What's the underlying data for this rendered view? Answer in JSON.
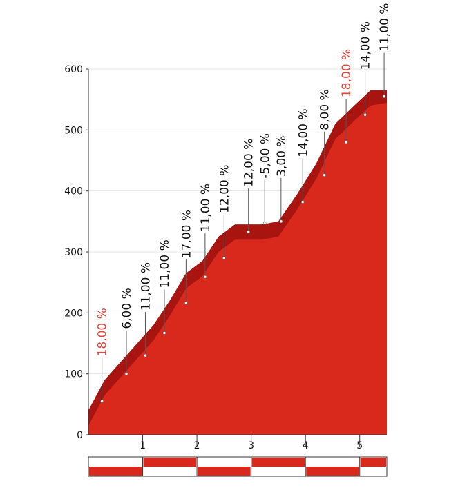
{
  "chart_data": {
    "type": "area",
    "title": "",
    "xlabel": "",
    "ylabel": "",
    "xlim": [
      0,
      5.5
    ],
    "ylim": [
      0,
      600
    ],
    "y_ticks": [
      0,
      100,
      200,
      300,
      400,
      500,
      600
    ],
    "y_tick_labels": [
      "0",
      "100",
      "200",
      "300",
      "400",
      "500",
      "600"
    ],
    "x_ticks": [
      1,
      2,
      3,
      4,
      5
    ],
    "x_tick_labels": [
      "1",
      "2",
      "3",
      "4",
      "5"
    ],
    "grid": true,
    "fill_color": "#d9281c",
    "edge_color": "#a81511",
    "highlight_color": "#e0453a",
    "profile": {
      "x": [
        0.0,
        0.3,
        0.6,
        0.9,
        1.2,
        1.5,
        1.8,
        2.1,
        2.4,
        2.7,
        2.95,
        3.2,
        3.5,
        3.85,
        4.2,
        4.55,
        4.9,
        5.2,
        5.5
      ],
      "y": [
        40,
        90,
        120,
        150,
        180,
        220,
        265,
        285,
        325,
        345,
        345,
        345,
        350,
        395,
        445,
        510,
        540,
        565,
        565
      ]
    },
    "annotations": [
      {
        "x": 0.25,
        "y": 55,
        "label": "18,00 %",
        "highlight": true
      },
      {
        "x": 0.7,
        "y": 100,
        "label": "6,00 %",
        "highlight": false
      },
      {
        "x": 1.05,
        "y": 130,
        "label": "11,00 %",
        "highlight": false
      },
      {
        "x": 1.4,
        "y": 167,
        "label": "11,00 %",
        "highlight": false
      },
      {
        "x": 1.8,
        "y": 216,
        "label": "17,00 %",
        "highlight": false
      },
      {
        "x": 2.15,
        "y": 259,
        "label": "11,00 %",
        "highlight": false
      },
      {
        "x": 2.5,
        "y": 290,
        "label": "12,00 %",
        "highlight": false
      },
      {
        "x": 2.95,
        "y": 333,
        "label": "12,00 %",
        "highlight": false
      },
      {
        "x": 3.25,
        "y": 347,
        "label": "-5,00 %",
        "highlight": false
      },
      {
        "x": 3.55,
        "y": 350,
        "label": "3,00 %",
        "highlight": false
      },
      {
        "x": 3.95,
        "y": 382,
        "label": "14,00 %",
        "highlight": false
      },
      {
        "x": 4.35,
        "y": 426,
        "label": "8,00 %",
        "highlight": false
      },
      {
        "x": 4.75,
        "y": 480,
        "label": "18,00 %",
        "highlight": true
      },
      {
        "x": 5.1,
        "y": 525,
        "label": "14,00 %",
        "highlight": false
      },
      {
        "x": 5.45,
        "y": 555,
        "label": "11,00 %",
        "highlight": false
      }
    ]
  }
}
